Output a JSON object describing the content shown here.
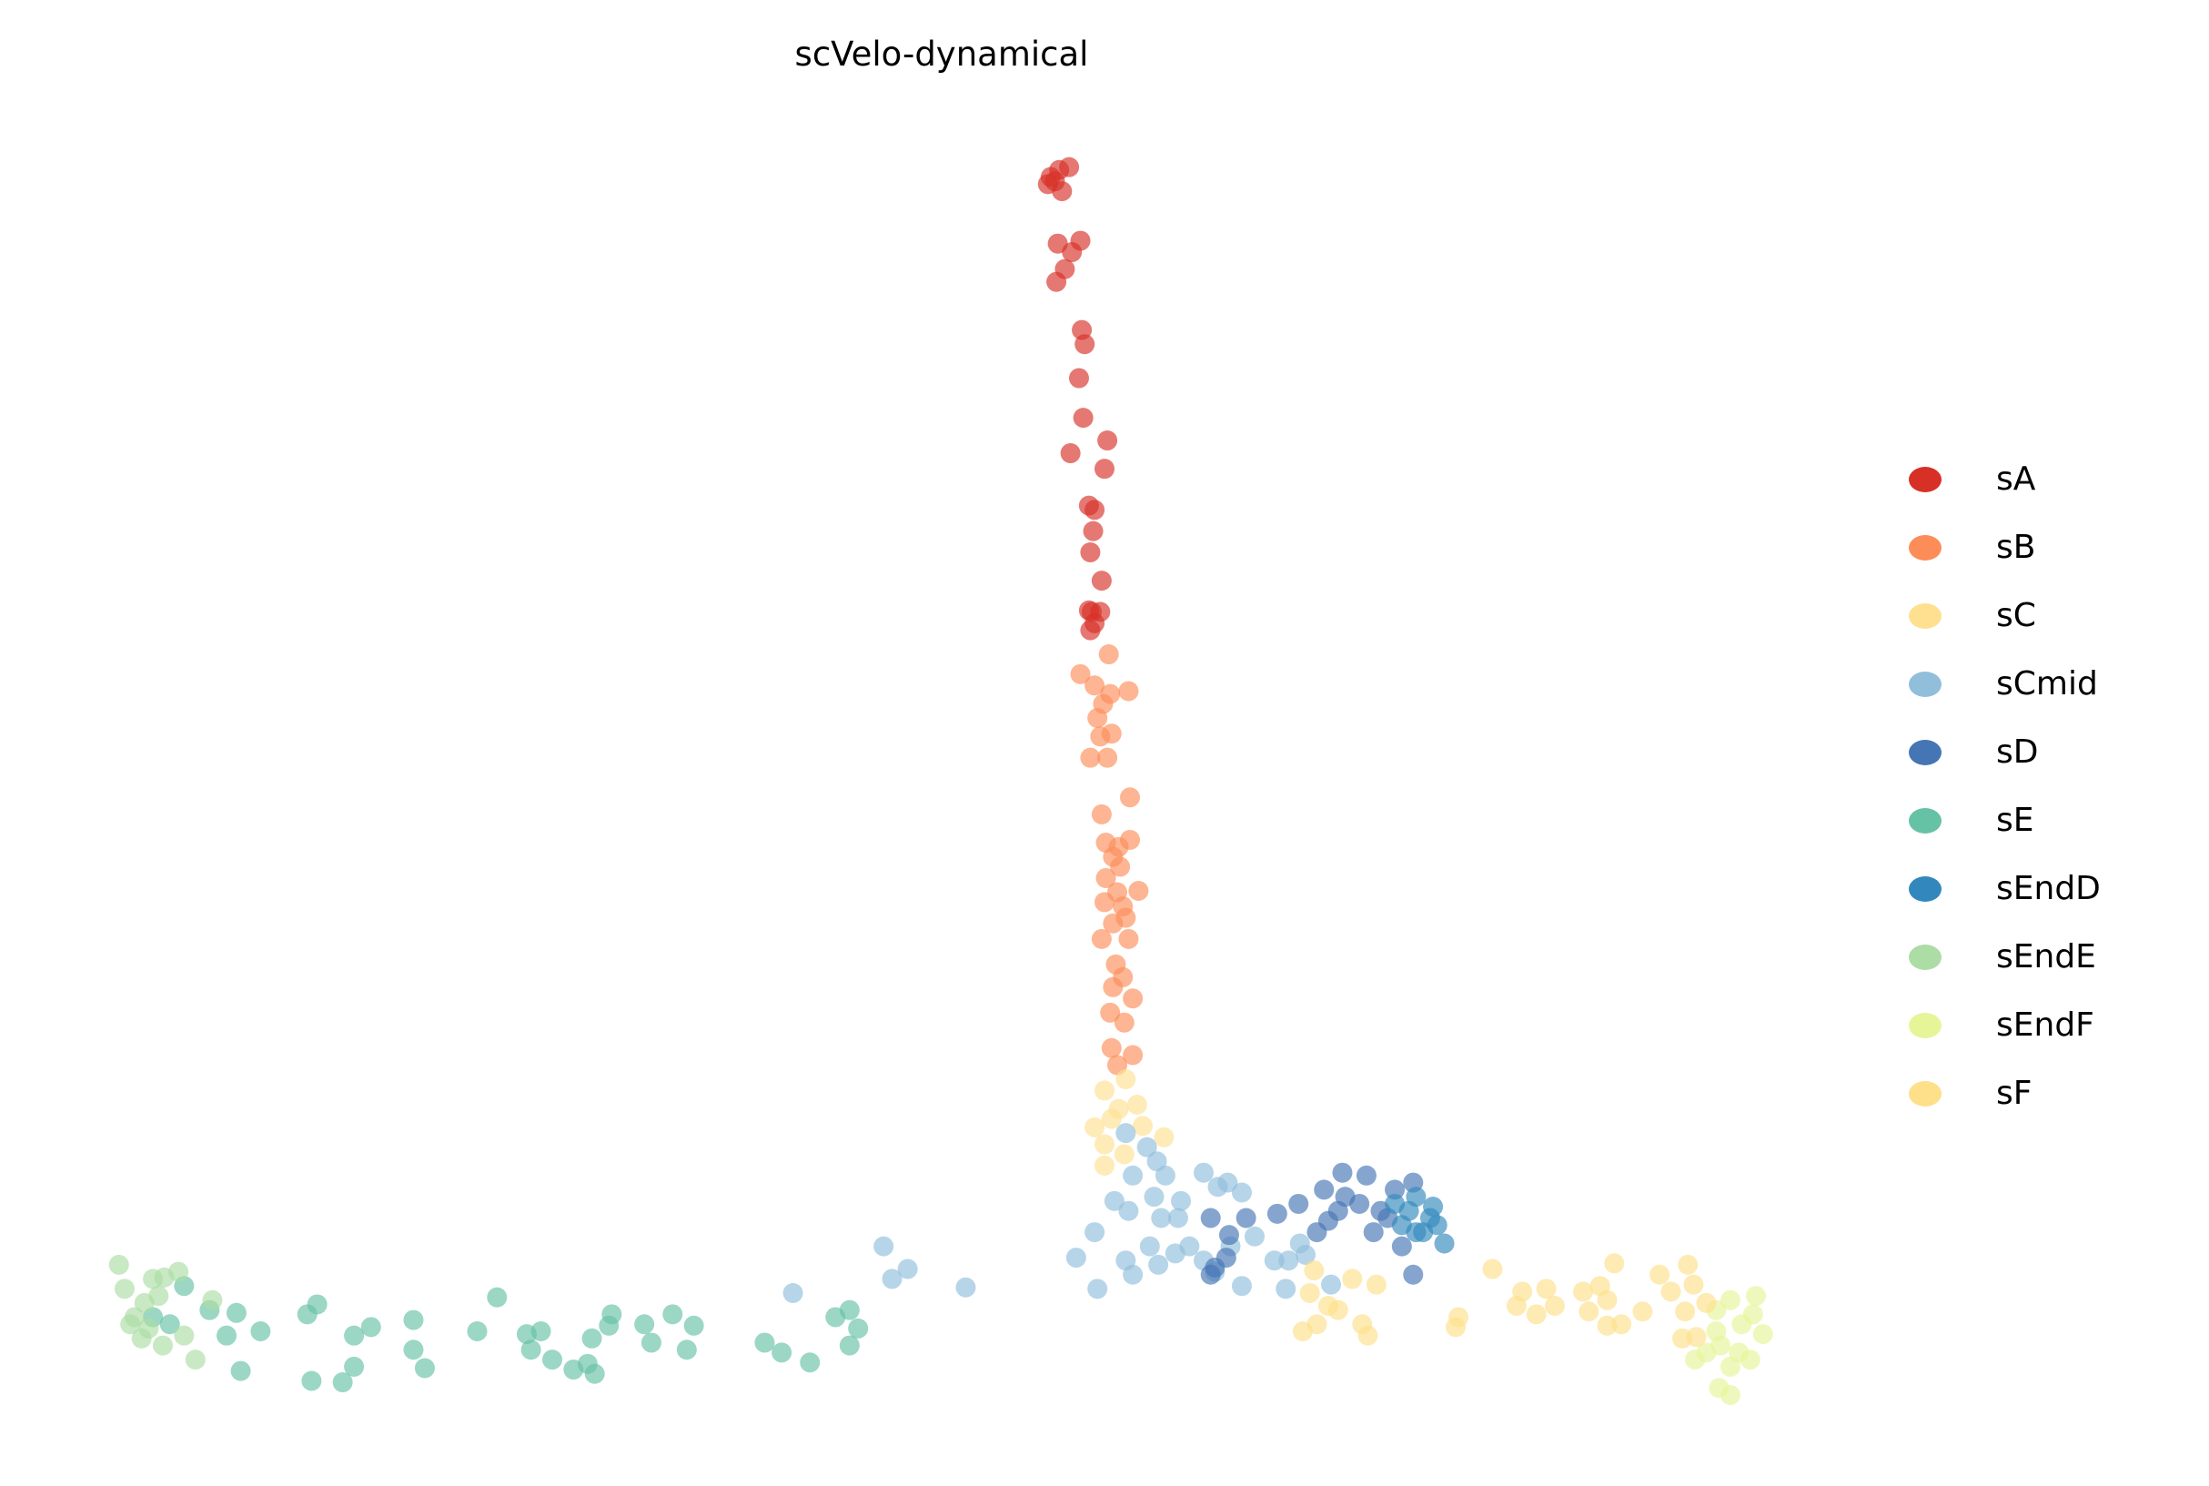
{
  "chart_data": {
    "type": "scatter",
    "title": "scVelo-dynamical",
    "xlabel": "",
    "ylabel": "",
    "grid": false,
    "axes_visible": false,
    "xlim": [
      0,
      156
    ],
    "ylim": [
      -5,
      100
    ],
    "legend_position": "right",
    "series": [
      {
        "name": "sA",
        "color": "#d73027",
        "points": [
          [
            74.2,
            87.5
          ],
          [
            74.8,
            88
          ],
          [
            75.5,
            88.2
          ],
          [
            74,
            87
          ],
          [
            75,
            86.5
          ],
          [
            74.5,
            87.2
          ],
          [
            74.7,
            82.8
          ],
          [
            76.3,
            83
          ],
          [
            75.7,
            82.2
          ],
          [
            75.2,
            81
          ],
          [
            74.6,
            80.1
          ],
          [
            76.4,
            76.7
          ],
          [
            76.6,
            75.7
          ],
          [
            76.2,
            73.3
          ],
          [
            76.5,
            70.5
          ],
          [
            78.2,
            68.9
          ],
          [
            75.6,
            68
          ],
          [
            78,
            66.9
          ],
          [
            76.9,
            64.3
          ],
          [
            77.3,
            64
          ],
          [
            77.2,
            62.5
          ],
          [
            77,
            61
          ],
          [
            77.8,
            59
          ],
          [
            76.9,
            56.9
          ],
          [
            77.7,
            56.8
          ],
          [
            77,
            55.5
          ],
          [
            77.3,
            56
          ],
          [
            77.1,
            56.8
          ]
        ]
      },
      {
        "name": "sB",
        "color": "#fc8d59",
        "points": [
          [
            76.3,
            52.4
          ],
          [
            78.3,
            53.8
          ],
          [
            77.3,
            51.6
          ],
          [
            77.9,
            50.3
          ],
          [
            78.4,
            51
          ],
          [
            79.7,
            51.2
          ],
          [
            77.5,
            49.3
          ],
          [
            78.5,
            48.2
          ],
          [
            77.7,
            48
          ],
          [
            77,
            46.5
          ],
          [
            78.2,
            46.5
          ],
          [
            79.8,
            43.7
          ],
          [
            77.8,
            42.5
          ],
          [
            78.1,
            40.5
          ],
          [
            79,
            40.2
          ],
          [
            79.8,
            40.7
          ],
          [
            78.6,
            39.5
          ],
          [
            79.1,
            38.8
          ],
          [
            78.1,
            38
          ],
          [
            78.9,
            37
          ],
          [
            80.4,
            37.1
          ],
          [
            78,
            36.3
          ],
          [
            79.3,
            36
          ],
          [
            78.6,
            34.8
          ],
          [
            79.5,
            35.2
          ],
          [
            77.8,
            33.7
          ],
          [
            79.7,
            33.7
          ],
          [
            78.8,
            31.9
          ],
          [
            79.3,
            31
          ],
          [
            78.6,
            30.3
          ],
          [
            80,
            29.5
          ],
          [
            78.4,
            28.5
          ],
          [
            79.4,
            27.8
          ],
          [
            78.5,
            26
          ],
          [
            80,
            25.5
          ],
          [
            78.9,
            24.8
          ]
        ]
      },
      {
        "name": "sC",
        "color": "#fee090",
        "points": [
          [
            78,
            23
          ],
          [
            79.5,
            23.8
          ],
          [
            79,
            21.7
          ],
          [
            80.3,
            22
          ],
          [
            77.3,
            20.4
          ],
          [
            78.5,
            21
          ],
          [
            80.7,
            20.5
          ],
          [
            78,
            19.2
          ],
          [
            82.2,
            19.7
          ],
          [
            79.4,
            18.5
          ],
          [
            78,
            17.7
          ]
        ]
      },
      {
        "name": "sCmid",
        "color": "#91bfdb",
        "points": [
          [
            79.5,
            20
          ],
          [
            81,
            19
          ],
          [
            81.7,
            18
          ],
          [
            80,
            17
          ],
          [
            82.3,
            17
          ],
          [
            78.7,
            15.2
          ],
          [
            79.7,
            14.5
          ],
          [
            81.5,
            15.5
          ],
          [
            82,
            14
          ],
          [
            83.4,
            15.2
          ],
          [
            85,
            17.2
          ],
          [
            86,
            16.2
          ],
          [
            86.7,
            16.5
          ],
          [
            87.7,
            15.8
          ],
          [
            77.3,
            13
          ],
          [
            76,
            11.2
          ],
          [
            77.5,
            9
          ],
          [
            79.5,
            11
          ],
          [
            80,
            10
          ],
          [
            81.8,
            10.7
          ],
          [
            83,
            11.5
          ],
          [
            84,
            12
          ],
          [
            85,
            11
          ],
          [
            85.8,
            10.2
          ],
          [
            86.9,
            12
          ],
          [
            88.6,
            12.7
          ],
          [
            90,
            11
          ],
          [
            87.7,
            9.2
          ],
          [
            91,
            11
          ],
          [
            91.8,
            12.2
          ],
          [
            92.2,
            11.4
          ],
          [
            90.8,
            9
          ],
          [
            94,
            9.3
          ],
          [
            62.4,
            12
          ],
          [
            63,
            9.7
          ],
          [
            64.1,
            10.4
          ],
          [
            56,
            8.7
          ],
          [
            68.2,
            9.1
          ],
          [
            83.2,
            14
          ],
          [
            81.2,
            12
          ]
        ]
      },
      {
        "name": "sD",
        "color": "#4575b4",
        "points": [
          [
            85.5,
            14
          ],
          [
            86.8,
            12.8
          ],
          [
            88,
            14
          ],
          [
            90.2,
            14.3
          ],
          [
            91.7,
            15
          ],
          [
            93.5,
            16
          ],
          [
            94.8,
            17.2
          ],
          [
            93.8,
            13.8
          ],
          [
            94.5,
            14.5
          ],
          [
            96.5,
            17
          ],
          [
            96,
            15
          ],
          [
            97.5,
            14.5
          ],
          [
            98.5,
            16
          ],
          [
            97,
            13
          ],
          [
            99,
            12
          ],
          [
            99.8,
            16.5
          ],
          [
            85.5,
            10
          ],
          [
            85.8,
            10.5
          ],
          [
            86.6,
            11.2
          ],
          [
            99.8,
            10
          ],
          [
            93,
            13
          ],
          [
            95,
            15.5
          ],
          [
            98,
            14
          ]
        ]
      },
      {
        "name": "sE",
        "color": "#66c2a5",
        "points": [
          [
            14.8,
            7.5
          ],
          [
            16.7,
            7.3
          ],
          [
            16,
            5.7
          ],
          [
            18.4,
            6
          ],
          [
            17,
            3.2
          ],
          [
            21.7,
            7.2
          ],
          [
            22.4,
            7.9
          ],
          [
            25,
            5.7
          ],
          [
            26.2,
            6.3
          ],
          [
            22,
            2.5
          ],
          [
            24.2,
            2.4
          ],
          [
            25,
            3.5
          ],
          [
            29.2,
            6.8
          ],
          [
            29.2,
            4.7
          ],
          [
            30,
            3.4
          ],
          [
            33.7,
            6
          ],
          [
            35.1,
            8.4
          ],
          [
            37.2,
            5.8
          ],
          [
            38.2,
            6
          ],
          [
            37.5,
            4.7
          ],
          [
            39,
            4
          ],
          [
            40.5,
            3.3
          ],
          [
            42,
            3
          ],
          [
            41.5,
            3.7
          ],
          [
            41.8,
            5.5
          ],
          [
            43.2,
            7.2
          ],
          [
            43,
            6.4
          ],
          [
            45.5,
            6.5
          ],
          [
            46,
            5.2
          ],
          [
            47.5,
            7.2
          ],
          [
            48.5,
            4.7
          ],
          [
            49,
            6.4
          ],
          [
            54,
            5.2
          ],
          [
            55.2,
            4.5
          ],
          [
            57.2,
            3.8
          ],
          [
            59,
            7
          ],
          [
            60,
            7.5
          ],
          [
            60.6,
            6.2
          ],
          [
            60,
            5
          ],
          [
            13,
            9.2
          ],
          [
            12,
            6.5
          ],
          [
            10.8,
            7
          ]
        ]
      },
      {
        "name": "sEndD",
        "color": "#3288bd",
        "points": [
          [
            98.5,
            15
          ],
          [
            99.5,
            14.5
          ],
          [
            100,
            15.5
          ],
          [
            101,
            14
          ],
          [
            100.5,
            13
          ],
          [
            101.5,
            13.5
          ],
          [
            102,
            12.2
          ],
          [
            99,
            13.5
          ],
          [
            100,
            13
          ],
          [
            101.2,
            14.8
          ]
        ]
      },
      {
        "name": "sEndE",
        "color": "#abdda4",
        "points": [
          [
            8.4,
            10.7
          ],
          [
            8.8,
            9
          ],
          [
            9.5,
            7
          ],
          [
            10.2,
            8
          ],
          [
            10.8,
            9.7
          ],
          [
            11.2,
            8.5
          ],
          [
            11.6,
            9.8
          ],
          [
            12.6,
            10.2
          ],
          [
            10,
            5.5
          ],
          [
            11.5,
            5
          ],
          [
            13.8,
            4
          ],
          [
            15,
            8.2
          ],
          [
            13,
            5.7
          ],
          [
            9.2,
            6.5
          ],
          [
            10.5,
            6.2
          ]
        ]
      },
      {
        "name": "sEndF",
        "color": "#e6f598",
        "points": [
          [
            121.2,
            7.5
          ],
          [
            122.2,
            8.2
          ],
          [
            124,
            8.5
          ],
          [
            123,
            6.5
          ],
          [
            124.5,
            5.8
          ],
          [
            121.5,
            5
          ],
          [
            123.6,
            4
          ],
          [
            122.2,
            3.5
          ],
          [
            119.7,
            4
          ],
          [
            120.5,
            4.5
          ],
          [
            122.8,
            4.5
          ],
          [
            121.4,
            2
          ],
          [
            122.2,
            1.5
          ],
          [
            123.8,
            7.2
          ],
          [
            121.2,
            6
          ]
        ]
      },
      {
        "name": "sF",
        "color": "#fee08b",
        "points": [
          [
            92.8,
            10.3
          ],
          [
            95.5,
            9.7
          ],
          [
            92.5,
            8.7
          ],
          [
            97.2,
            9.3
          ],
          [
            93.8,
            7.8
          ],
          [
            94.5,
            7.5
          ],
          [
            92,
            6
          ],
          [
            93,
            6.5
          ],
          [
            96.2,
            6.5
          ],
          [
            96.6,
            5.7
          ],
          [
            103,
            7
          ],
          [
            102.8,
            6.3
          ],
          [
            105.4,
            10.4
          ],
          [
            107.5,
            8.8
          ],
          [
            109.2,
            9
          ],
          [
            107.1,
            7.8
          ],
          [
            108.5,
            7.2
          ],
          [
            109.8,
            7.8
          ],
          [
            111.8,
            8.8
          ],
          [
            113,
            9.2
          ],
          [
            114,
            10.8
          ],
          [
            113.5,
            8.2
          ],
          [
            112.2,
            7.4
          ],
          [
            113.5,
            6.4
          ],
          [
            114.5,
            6.5
          ],
          [
            116,
            7.4
          ],
          [
            117.2,
            10
          ],
          [
            118,
            8.8
          ],
          [
            119.2,
            10.7
          ],
          [
            119.6,
            9.3
          ],
          [
            119,
            7.4
          ],
          [
            118.8,
            5.5
          ],
          [
            119.8,
            5.6
          ],
          [
            120.5,
            8
          ]
        ]
      }
    ]
  }
}
